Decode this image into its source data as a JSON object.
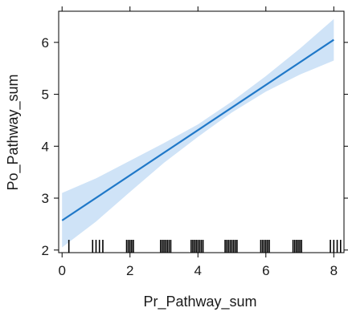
{
  "chart_data": {
    "type": "line",
    "title": "",
    "xlabel": "Pr_Pathway_sum",
    "ylabel": "Po_Pathway_sum",
    "xlim": [
      -0.1,
      8.3
    ],
    "ylim": [
      1.95,
      6.6
    ],
    "x_ticks": [
      0,
      2,
      4,
      6,
      8
    ],
    "x_tick_labels": [
      "0",
      "2",
      "4",
      "6",
      "8"
    ],
    "y_ticks": [
      2,
      3,
      4,
      5,
      6
    ],
    "y_tick_labels": [
      "2",
      "3",
      "4",
      "5",
      "6"
    ],
    "grid": false,
    "legend": "none",
    "series": [
      {
        "x": [
          0,
          8
        ],
        "y": [
          2.57,
          6.05
        ],
        "ci_lower": [
          2.05,
          5.65
        ],
        "ci_upper": [
          3.1,
          6.45
        ]
      }
    ],
    "ci_curve_x": [
      0,
      1,
      2,
      3,
      4,
      5,
      6,
      7,
      8
    ],
    "ci_curve_lower": [
      2.05,
      2.55,
      3.12,
      3.68,
      4.18,
      4.65,
      5.05,
      5.38,
      5.65
    ],
    "ci_curve_upper": [
      3.1,
      3.38,
      3.72,
      4.06,
      4.42,
      4.86,
      5.35,
      5.88,
      6.45
    ],
    "rug_x": [
      0.2,
      0.9,
      1.0,
      1.1,
      1.2,
      1.9,
      1.95,
      2.0,
      2.05,
      2.1,
      2.9,
      2.95,
      3.0,
      3.05,
      3.1,
      3.15,
      3.2,
      3.8,
      3.85,
      3.9,
      3.95,
      4.0,
      4.05,
      4.1,
      4.15,
      4.8,
      4.85,
      4.9,
      4.95,
      5.0,
      5.05,
      5.1,
      5.15,
      5.85,
      5.9,
      5.95,
      6.0,
      6.05,
      6.1,
      6.8,
      6.85,
      6.9,
      6.95,
      7.0,
      7.05,
      7.9,
      8.0,
      8.1,
      8.2
    ],
    "colors": {
      "line": "#1f78c8",
      "band": "#cfe3f7",
      "axis": "#000000",
      "rug": "#000000"
    }
  }
}
